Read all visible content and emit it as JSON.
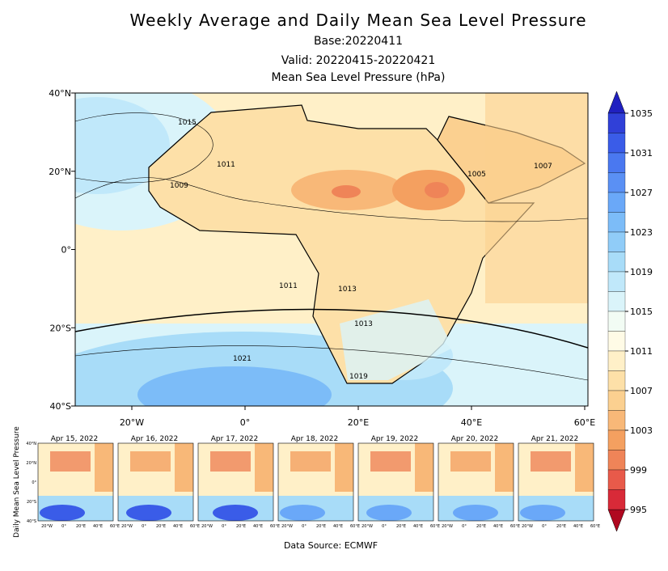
{
  "header": {
    "title": "Weekly Average and Daily Mean Sea Level Pressure",
    "base": "Base:20220411",
    "valid": "Valid: 20220415-20220421",
    "subtitle": "Mean Sea Level Pressure (hPa)"
  },
  "map": {
    "lat_labels": [
      "40°N",
      "20°N",
      "0°",
      "20°S",
      "40°S"
    ],
    "lon_labels": [
      "20°W",
      "0°",
      "20°E",
      "40°E",
      "60°E"
    ],
    "contour_labels": [
      "1015",
      "1011",
      "1009",
      "1011",
      "1013",
      "1013",
      "1021",
      "1019",
      "1005",
      "1007"
    ]
  },
  "colorbar": {
    "ticks": [
      1035,
      1031,
      1027,
      1023,
      1019,
      1015,
      1011,
      1007,
      1003,
      999,
      995
    ],
    "top_color": "#2020c0",
    "bottom_color": "#b00820",
    "colors": [
      "#3040d8",
      "#3a5ce8",
      "#4a78f0",
      "#5a90f4",
      "#6aa8f8",
      "#7cbcf8",
      "#90ccf8",
      "#a8dcf8",
      "#c0e8fa",
      "#daf4fa",
      "#f2fcf4",
      "#fffbe6",
      "#fff0c8",
      "#fde0a8",
      "#fbd090",
      "#f8b878",
      "#f4a060",
      "#ef8458",
      "#e85a4a",
      "#d82a38"
    ]
  },
  "panels": {
    "axis_label": "Daily Mean Sea Level Pressure",
    "titles": [
      "Apr 15, 2022",
      "Apr 16, 2022",
      "Apr 17, 2022",
      "Apr 18, 2022",
      "Apr 19, 2022",
      "Apr 20, 2022",
      "Apr 21, 2022"
    ],
    "lat_labels": [
      "40°N",
      "20°N",
      "0°",
      "20°S",
      "40°S"
    ],
    "lon_labels": [
      "20°W",
      "0°",
      "20°E",
      "40°E",
      "60°E"
    ]
  },
  "source": "Data Source: ECMWF"
}
